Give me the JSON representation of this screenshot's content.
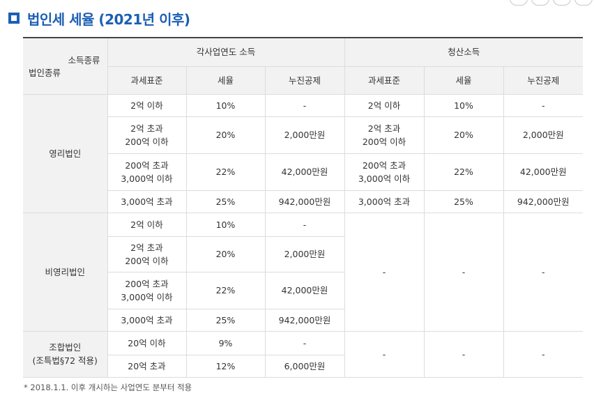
{
  "title": "법인세 세율 (2021년 이후)",
  "header": {
    "corner_top": "소득종류",
    "corner_bottom": "법인종류",
    "group1": "각사업연도 소득",
    "group2": "청산소득",
    "col_base": "과세표준",
    "col_rate": "세율",
    "col_deduction": "누진공제"
  },
  "sections": {
    "forprofit": "영리법인",
    "nonprofit": "비영리법인",
    "coop_line1": "조합법인",
    "coop_line2": "(조특법§72 적용)"
  },
  "rows": [
    {
      "b1": "2억 이하",
      "b2": "",
      "r": "10%",
      "d": "-",
      "lb1": "2억 이하",
      "lb2": "",
      "lr": "10%",
      "ld": "-"
    },
    {
      "b1": "2억 초과",
      "b2": "200억 이하",
      "r": "20%",
      "d": "2,000만원",
      "lb1": "2억 초과",
      "lb2": "200억 이하",
      "lr": "20%",
      "ld": "2,000만원"
    },
    {
      "b1": "200억 초과",
      "b2": "3,000억 이하",
      "r": "22%",
      "d": "42,000만원",
      "lb1": "200억 초과",
      "lb2": "3,000억 이하",
      "lr": "22%",
      "ld": "42,000만원"
    },
    {
      "b1": "3,000억 초과",
      "b2": "",
      "r": "25%",
      "d": "942,000만원",
      "lb1": "3,000억 초과",
      "lb2": "",
      "lr": "25%",
      "ld": "942,000만원"
    },
    {
      "b1": "2억 이하",
      "b2": "",
      "r": "10%",
      "d": "-"
    },
    {
      "b1": "2억 초과",
      "b2": "200억 이하",
      "r": "20%",
      "d": "2,000만원"
    },
    {
      "b1": "200억 초과",
      "b2": "3,000억 이하",
      "r": "22%",
      "d": "42,000만원"
    },
    {
      "b1": "3,000억 초과",
      "b2": "",
      "r": "25%",
      "d": "942,000만원"
    },
    {
      "b1": "20억 이하",
      "b2": "",
      "r": "9%",
      "d": "-"
    },
    {
      "b1": "20억 초과",
      "b2": "",
      "r": "12%",
      "d": "6,000만원"
    }
  ],
  "nonprofit_liquidation": {
    "base": "-",
    "rate": "-",
    "deduction": "-"
  },
  "coop_liquidation": {
    "base": "-",
    "rate": "-",
    "deduction": "-"
  },
  "footnote": "* 2018.1.1. 이후 개시하는 사업연도 분부터 적용"
}
